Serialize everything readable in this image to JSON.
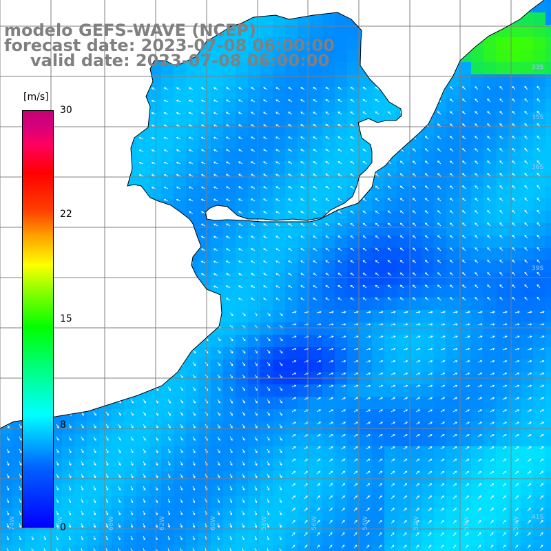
{
  "title_line1": "modelo GEFS-WAVE (NCEP)",
  "title_line2": "forecast date: 2023-07-08 06:00:00",
  "title_line3": "valid date: 2023-07-08 06:00:00",
  "colorbar": {
    "units": "[m/s]",
    "ticks": [
      "30",
      "22",
      "15",
      "8",
      "0"
    ],
    "tick_values": [
      30,
      22,
      15,
      8,
      0
    ]
  },
  "lat_labels": [
    "33S",
    "35S",
    "36S",
    "39S",
    "41S"
  ],
  "lon_labels": [
    "74W",
    "70W",
    "66W",
    "62W",
    "60W",
    "58W",
    "56W",
    "54W",
    "52W",
    "51W",
    "50W"
  ],
  "colors": {
    "land": "#ffffff",
    "coast": "#000000",
    "grid": "#7f7f7f",
    "vectors": "#ffffff",
    "title": "#808080"
  }
}
